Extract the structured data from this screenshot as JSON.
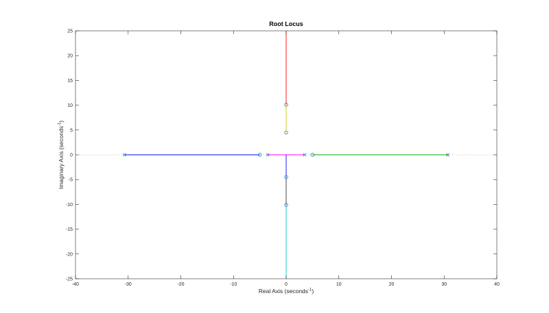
{
  "chart_data": {
    "type": "line",
    "title": "Root Locus",
    "xlabel": {
      "main": "Real Axis (seconds",
      "sup": "-1",
      "close": ")"
    },
    "ylabel": {
      "main": "Imaginary Axis (seconds",
      "sup": "-1",
      "close": ")"
    },
    "xlim": [
      -40,
      40
    ],
    "ylim": [
      -25,
      25
    ],
    "xticks": [
      -40,
      -30,
      -20,
      -10,
      0,
      10,
      20,
      30,
      40
    ],
    "yticks": [
      -25,
      -20,
      -15,
      -10,
      -5,
      0,
      5,
      10,
      15,
      20,
      25
    ],
    "grid": false,
    "legend": "none",
    "series": [
      {
        "color": "#0000ff",
        "points": [
          [
            -30.7,
            0
          ],
          [
            -5,
            0
          ]
        ]
      },
      {
        "color": "#00aa00",
        "points": [
          [
            30.7,
            0
          ],
          [
            5,
            0
          ]
        ]
      },
      {
        "color": "#ff00ff",
        "points": [
          [
            -3.5,
            0
          ],
          [
            0,
            0
          ],
          [
            3.5,
            0
          ]
        ]
      },
      {
        "color": "#ff0000",
        "points": [
          [
            0,
            10.1
          ],
          [
            0,
            25
          ]
        ]
      },
      {
        "color": "#00cccc",
        "points": [
          [
            0,
            -10.1
          ],
          [
            0,
            -25
          ]
        ]
      },
      {
        "color": "#cccc00",
        "points": [
          [
            0,
            4.5
          ],
          [
            0,
            10.1
          ]
        ]
      },
      {
        "color": "#0000ff",
        "points": [
          [
            0,
            -4.5
          ],
          [
            0,
            0
          ]
        ]
      },
      {
        "color": "#333333",
        "points": [
          [
            0,
            -4.5
          ],
          [
            0,
            -10.1
          ]
        ]
      }
    ],
    "poles": [
      [
        -30.7,
        0
      ],
      [
        -3.5,
        0
      ],
      [
        3.5,
        0
      ],
      [
        30.7,
        0
      ]
    ],
    "zeros": [
      [
        -5,
        0
      ],
      [
        5,
        0
      ],
      [
        0,
        10.1
      ],
      [
        0,
        -10.1
      ],
      [
        0,
        4.5
      ],
      [
        0,
        -4.5
      ]
    ],
    "marker_color": "#2a7ab8",
    "real_axis_line_color": "#aaaaaa"
  }
}
